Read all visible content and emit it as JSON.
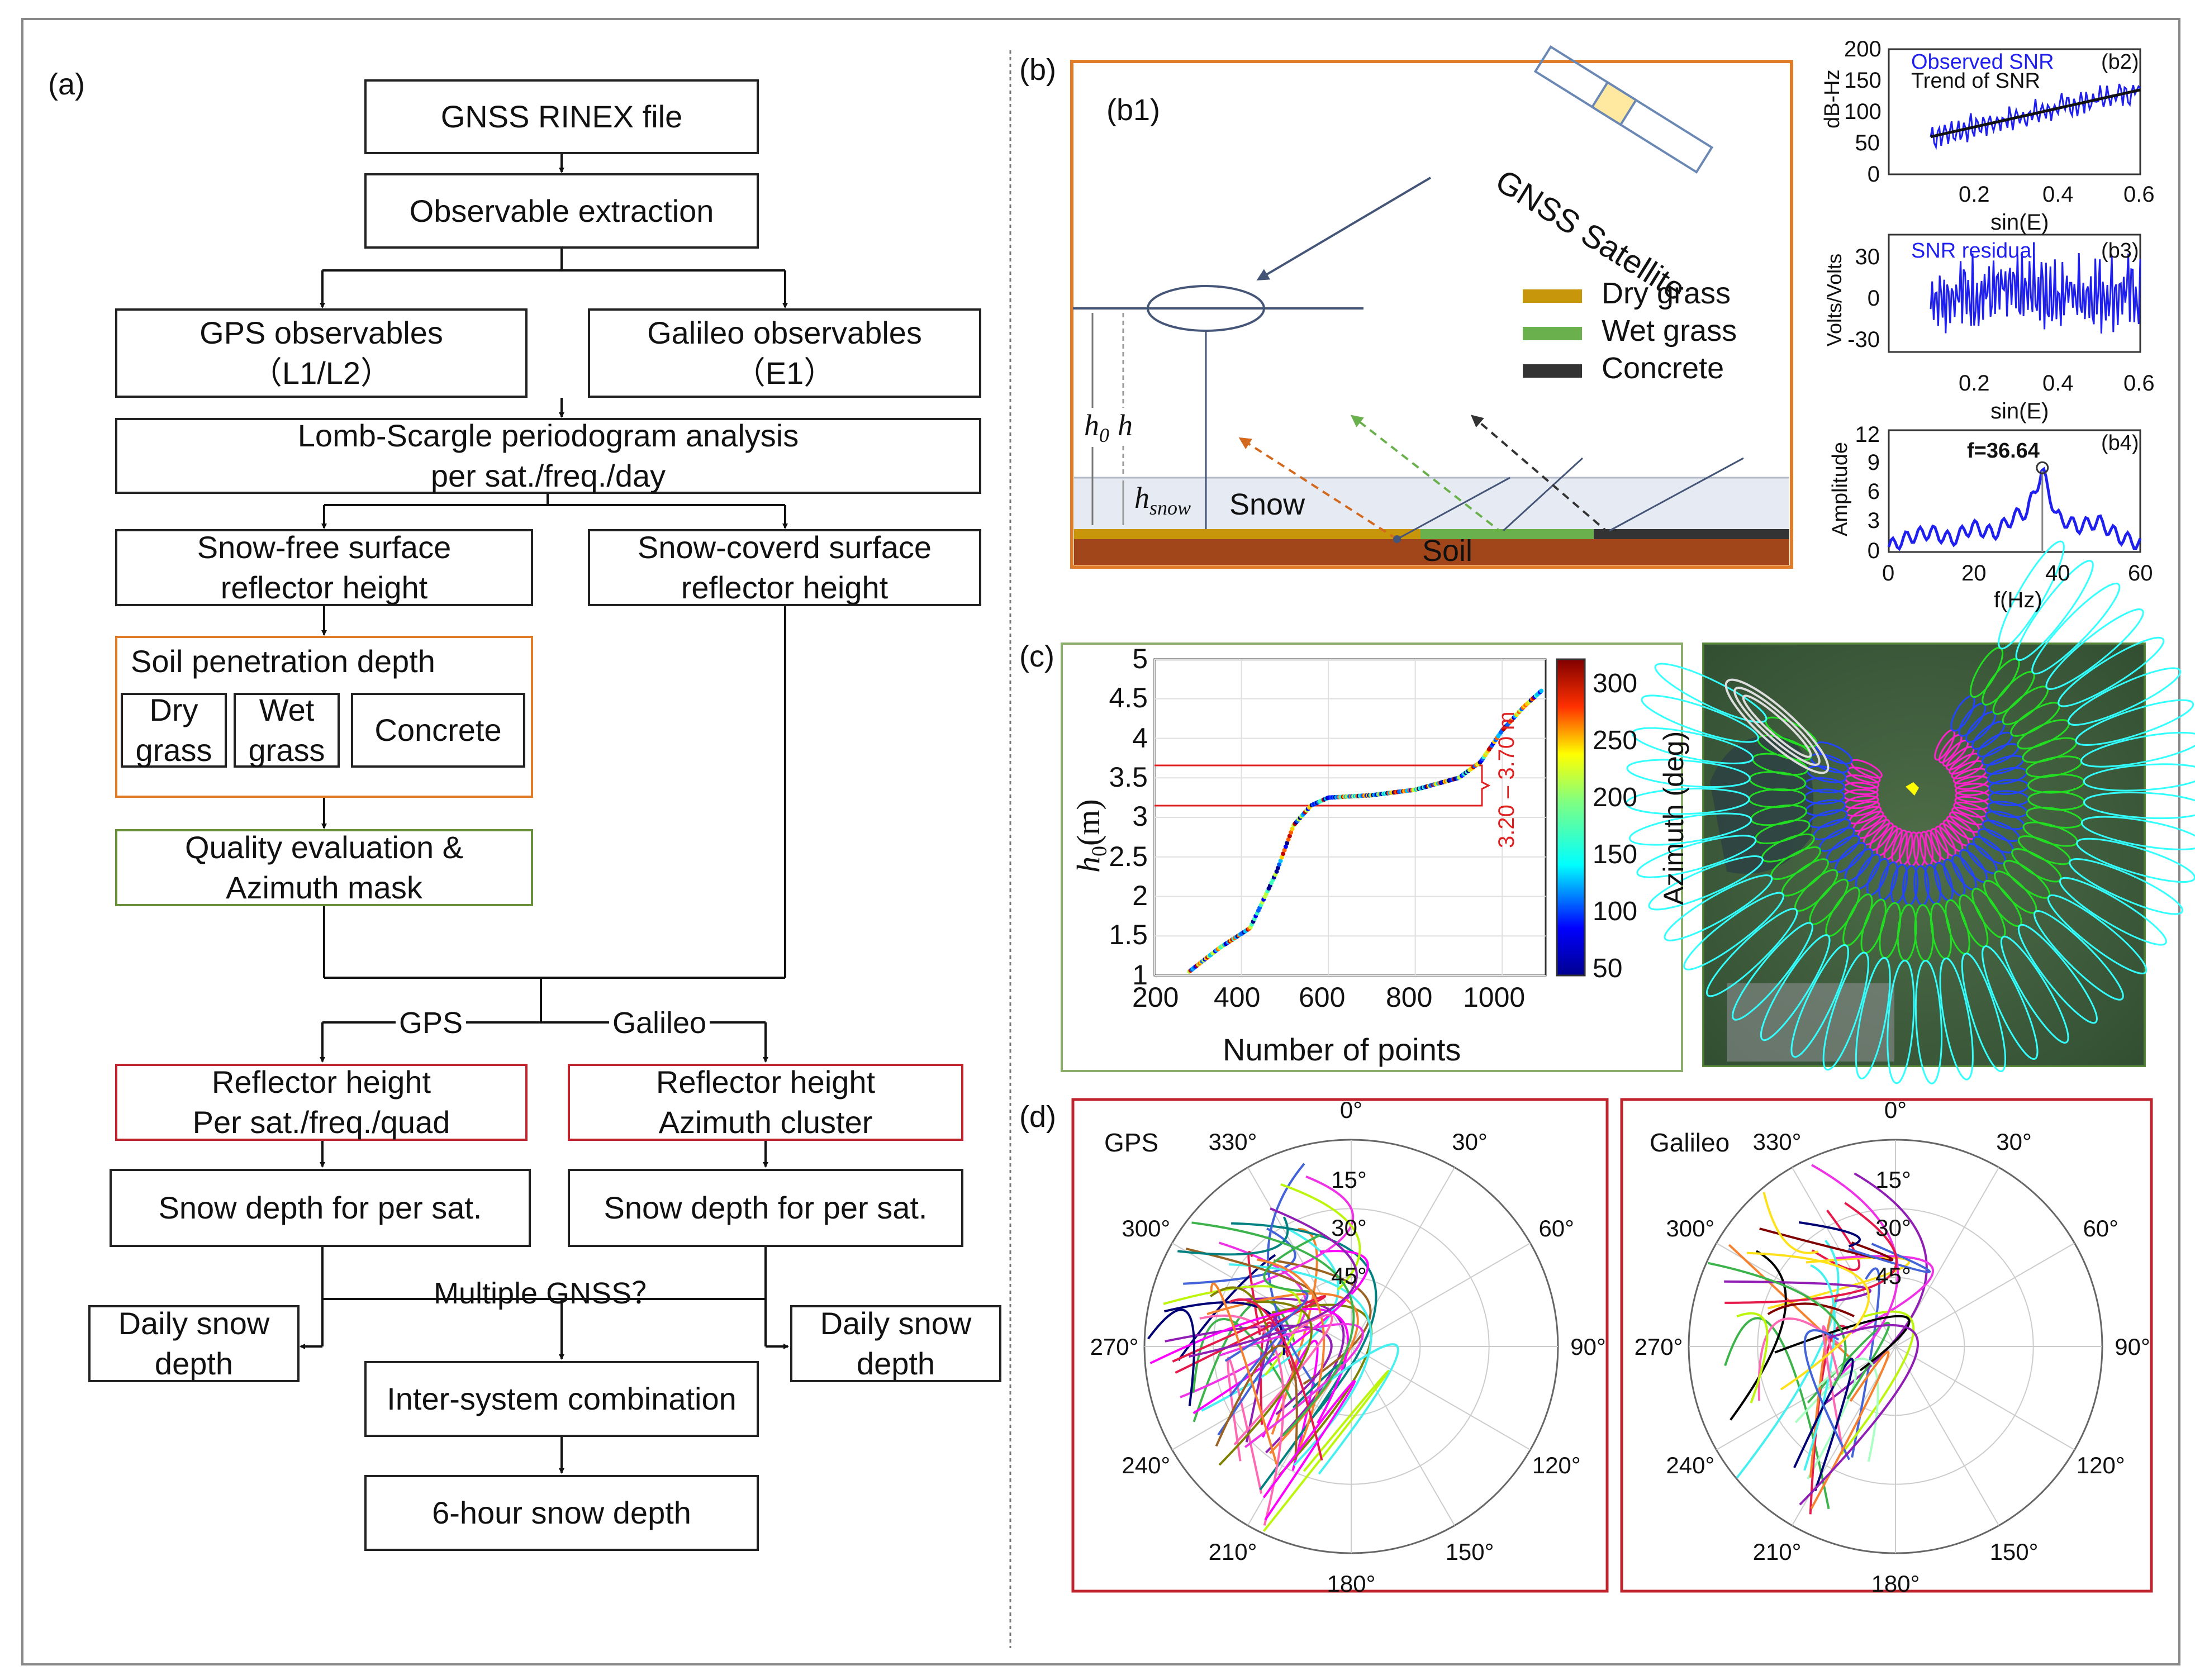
{
  "panel_labels": {
    "a": "(a)",
    "b": "(b)",
    "b1": "(b1)",
    "c": "(c)",
    "d": "(d)"
  },
  "flowchart": {
    "rinex": "GNSS RINEX file",
    "extraction": "Observable extraction",
    "gps_obs": {
      "line1": "GPS observables",
      "line2": "（L1/L2）"
    },
    "galileo_obs": {
      "line1": "Galileo observables",
      "line2": "（E1）"
    },
    "lomb": {
      "line1": "Lomb-Scargle periodogram analysis",
      "line2": "per sat./freq./day"
    },
    "snow_free": {
      "line1": "Snow-free surface",
      "line2": "reflector height"
    },
    "snow_covered": {
      "line1": "Snow-coverd surface",
      "line2": "reflector height"
    },
    "soil_penetration": "Soil penetration depth",
    "dry_grass": {
      "line1": "Dry",
      "line2": "grass"
    },
    "wet_grass": {
      "line1": "Wet",
      "line2": "grass"
    },
    "concrete": "Concrete",
    "quality": {
      "line1": "Quality evaluation &",
      "line2": "Azimuth mask"
    },
    "branch_gps": "GPS",
    "branch_galileo": "Galileo",
    "rh_gps": {
      "line1": "Reflector height",
      "line2": "Per sat./freq./quad"
    },
    "rh_galileo": {
      "line1": "Reflector height",
      "line2": "Azimuth cluster"
    },
    "sd_gps": "Snow depth for per sat.",
    "sd_galileo": "Snow depth for per sat.",
    "multiple": "Multiple GNSS？",
    "daily_left": {
      "line1": "Daily snow",
      "line2": "depth"
    },
    "daily_right": {
      "line1": "Daily snow",
      "line2": "depth"
    },
    "inter": "Inter-system combination",
    "six_hour": "6-hour snow depth"
  },
  "geometry_panel": {
    "satellite": "GNSS Satellite",
    "legend": [
      {
        "label": "Dry grass",
        "color": "#c8960a"
      },
      {
        "label": "Wet grass",
        "color": "#6ab04c"
      },
      {
        "label": "Concrete",
        "color": "#333333"
      }
    ],
    "h0_label": "h",
    "h0_sub": "0",
    "h_label": "h",
    "hsnow_label": "h",
    "hsnow_sub": "snow",
    "snow": "Snow",
    "soil": "Soil"
  },
  "b2": {
    "legend_observed": "Observed SNR",
    "legend_trend": "Trend of SNR",
    "tag": "(b2)",
    "ylabel": "dB-Hz",
    "xlabel": "sin(E)",
    "yticks": [
      "200",
      "150",
      "100",
      "50",
      "0"
    ],
    "xticks": [
      "0.2",
      "0.4",
      "0.6"
    ]
  },
  "b3": {
    "legend": "SNR residual",
    "tag": "(b3)",
    "ylabel": "Volts/Volts",
    "xlabel": "sin(E)",
    "yticks": [
      "30",
      "0",
      "-30"
    ],
    "xticks": [
      "0.2",
      "0.4",
      "0.6"
    ]
  },
  "b4": {
    "peak_label": "f=36.64",
    "tag": "(b4)",
    "ylabel": "Amplitude",
    "xlabel": "f(Hz)",
    "yticks": [
      "12",
      "9",
      "6",
      "3",
      "0"
    ],
    "xticks": [
      "0",
      "20",
      "40",
      "60"
    ]
  },
  "panel_c": {
    "xlabel": "Number of points",
    "ylabel": "h",
    "ylabel_sub": "0",
    "ylabel_unit": "(m)",
    "xticks": [
      "200",
      "400",
      "600",
      "800",
      "1000"
    ],
    "yticks": [
      "5",
      "4.5",
      "4",
      "3.5",
      "3",
      "2.5",
      "2",
      "1.5",
      "1"
    ],
    "range_annotation": "3.20 – 3.70 m",
    "colorbar_label": "Azimuth (deg)",
    "colorbar_ticks": [
      "300",
      "250",
      "200",
      "150",
      "100",
      "50"
    ]
  },
  "polar": {
    "gps_title": "GPS",
    "galileo_title": "Galileo",
    "angle_labels": [
      "0°",
      "30°",
      "60°",
      "90°",
      "120°",
      "150°",
      "180°",
      "210°",
      "240°",
      "270°",
      "300°",
      "330°"
    ],
    "radial_labels": [
      "15°",
      "30°",
      "45°"
    ]
  },
  "chart_data": [
    {
      "type": "line",
      "title": "(b2)",
      "xlabel": "sin(E)",
      "ylabel": "dB-Hz",
      "xlim": [
        0,
        0.6
      ],
      "ylim": [
        0,
        200
      ],
      "series": [
        {
          "name": "Observed SNR",
          "x": [
            0.1,
            0.2,
            0.3,
            0.4,
            0.5,
            0.6
          ],
          "values": [
            60,
            75,
            85,
            100,
            115,
            135
          ]
        },
        {
          "name": "Trend of SNR",
          "x": [
            0.1,
            0.6
          ],
          "values": [
            60,
            135
          ]
        }
      ]
    },
    {
      "type": "line",
      "title": "(b3)",
      "xlabel": "sin(E)",
      "ylabel": "Volts/Volts",
      "xlim": [
        0,
        0.6
      ],
      "ylim": [
        -40,
        40
      ],
      "series": [
        {
          "name": "SNR residual",
          "x": [
            0.1,
            0.6
          ],
          "values": [
            0,
            0
          ]
        }
      ]
    },
    {
      "type": "line",
      "title": "(b4)",
      "xlabel": "f(Hz)",
      "ylabel": "Amplitude",
      "xlim": [
        0,
        60
      ],
      "ylim": [
        0,
        12
      ],
      "series": [
        {
          "name": "Periodogram",
          "x": [
            0,
            5,
            10,
            15,
            20,
            25,
            30,
            33,
            36.64,
            40,
            45,
            50,
            55,
            60
          ],
          "values": [
            0.5,
            1.5,
            2.0,
            1.2,
            2.5,
            1.8,
            3.5,
            4.0,
            8.0,
            3.5,
            2.5,
            3.0,
            1.5,
            0.8
          ]
        }
      ],
      "annotations": [
        "f=36.64"
      ]
    },
    {
      "type": "scatter",
      "title": "",
      "xlabel": "Number of points",
      "ylabel": "h0 (m)",
      "xlim": [
        200,
        1100
      ],
      "ylim": [
        1,
        5
      ],
      "series": [
        {
          "name": "h0",
          "x": [
            280,
            350,
            420,
            480,
            520,
            560,
            600,
            700,
            800,
            900,
            950,
            1000,
            1050,
            1090
          ],
          "values": [
            1.05,
            1.35,
            1.6,
            2.3,
            2.9,
            3.15,
            3.25,
            3.28,
            3.35,
            3.5,
            3.7,
            4.1,
            4.4,
            4.6
          ]
        }
      ],
      "reference_lines_y": [
        3.2,
        3.7
      ],
      "colorbar": {
        "label": "Azimuth (deg)",
        "range": [
          40,
          330
        ]
      }
    }
  ]
}
